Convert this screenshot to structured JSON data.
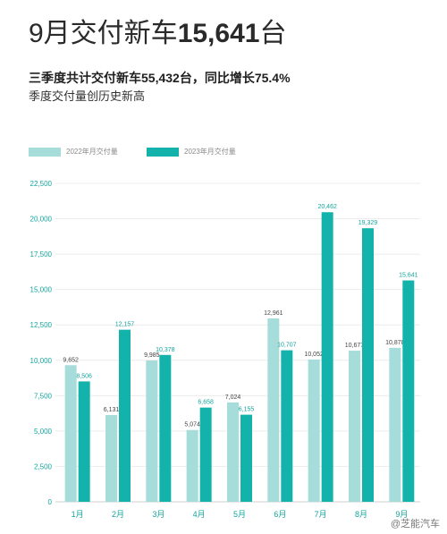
{
  "header": {
    "headline_prefix": "9月交付新车",
    "headline_number": "15,641",
    "headline_suffix": "台",
    "subtitle_bold": "三季度共计交付新车55,432台，同比增长75.4%",
    "subtitle_plain": "季度交付量创历史新高"
  },
  "colors": {
    "series_2022": "#a6dcda",
    "series_2023": "#13b3ac",
    "axis_text": "#14a59e"
  },
  "chart_data": {
    "type": "bar",
    "categories": [
      "1月",
      "2月",
      "3月",
      "4月",
      "5月",
      "6月",
      "7月",
      "8月",
      "9月"
    ],
    "series": [
      {
        "name": "2022年月交付量",
        "values": [
          9652,
          6131,
          9985,
          5074,
          7024,
          12961,
          10052,
          10677,
          10878
        ],
        "labels": [
          "9,652",
          "6,131",
          "9,985",
          "5,074",
          "7,024",
          "12,961",
          "10,052",
          "10,677",
          "10,878"
        ]
      },
      {
        "name": "2023年月交付量",
        "values": [
          8506,
          12157,
          10378,
          6658,
          6155,
          10707,
          20462,
          19329,
          15641
        ],
        "labels": [
          "8,506",
          "12,157",
          "10,378",
          "6,658",
          "6,155",
          "10,707",
          "20,462",
          "19,329",
          "15,641"
        ]
      }
    ],
    "ylim": [
      0,
      22500
    ],
    "yticks": [
      0,
      2500,
      5000,
      7500,
      10000,
      12500,
      15000,
      17500,
      20000,
      22500
    ],
    "ytick_labels": [
      "0",
      "2,500",
      "5,000",
      "7,500",
      "10,000",
      "12,500",
      "15,000",
      "17,500",
      "20,000",
      "22,500"
    ],
    "grid": true,
    "legend": "top-left"
  },
  "watermark": "@芝能汽车"
}
